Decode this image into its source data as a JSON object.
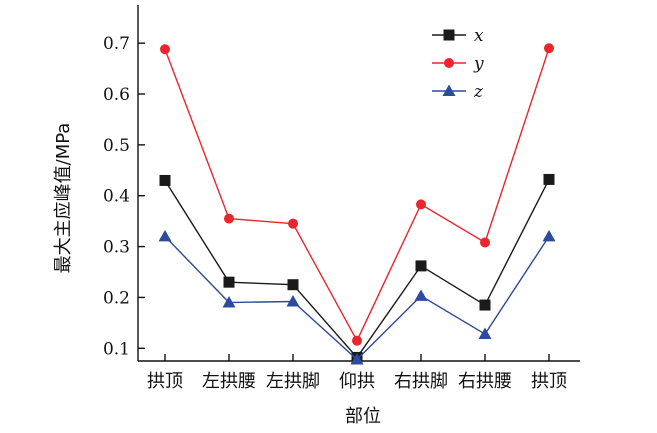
{
  "chart_data": {
    "type": "line",
    "xlabel": "部位",
    "ylabel": "最大主应峰值/MPa",
    "categories": [
      "拱顶",
      "左拱腰",
      "左拱脚",
      "仰拱",
      "右拱脚",
      "右拱腰",
      "拱顶"
    ],
    "yticks": [
      "0.1",
      "0.2",
      "0.3",
      "0.4",
      "0.5",
      "0.6",
      "0.7"
    ],
    "ylim": [
      0.075,
      0.775
    ],
    "grid": false,
    "legend_position": "top-right",
    "series": [
      {
        "name": "x",
        "color": "#1a1a1a",
        "marker": "square",
        "values": [
          0.43,
          0.23,
          0.225,
          0.082,
          0.262,
          0.185,
          0.432
        ]
      },
      {
        "name": "y",
        "color": "#e8262d",
        "marker": "circle",
        "values": [
          0.688,
          0.355,
          0.345,
          0.115,
          0.383,
          0.308,
          0.69
        ]
      },
      {
        "name": "z",
        "color": "#2e4a9a",
        "marker": "triangle",
        "values": [
          0.32,
          0.19,
          0.192,
          0.078,
          0.203,
          0.128,
          0.32
        ]
      }
    ]
  }
}
